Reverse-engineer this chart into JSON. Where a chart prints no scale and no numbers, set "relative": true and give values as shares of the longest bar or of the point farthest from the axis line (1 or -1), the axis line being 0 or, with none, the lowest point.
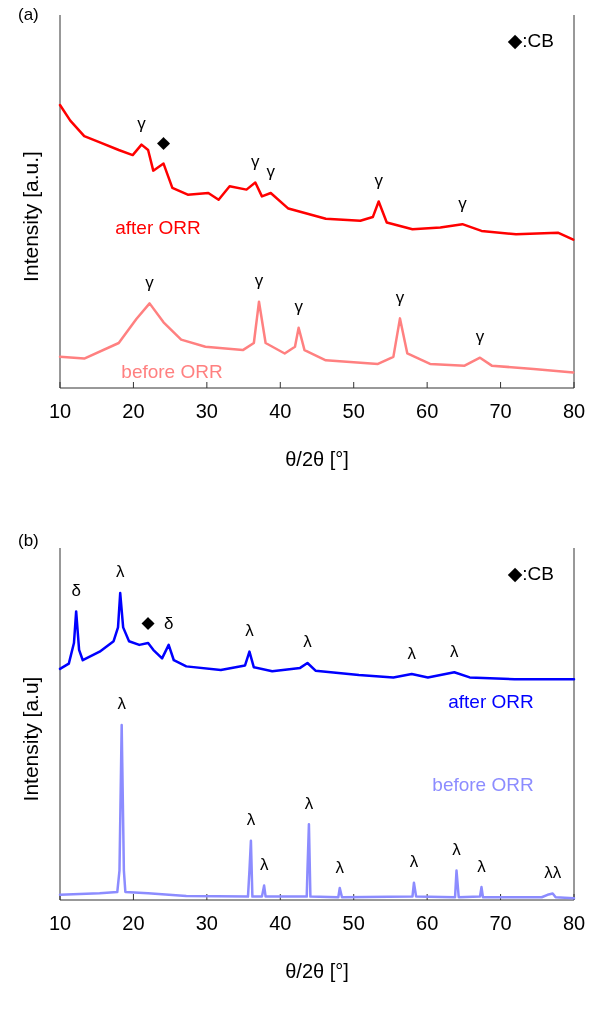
{
  "chart_data": [
    {
      "type": "line",
      "title": "(a)",
      "xlabel": "θ/2θ [°]",
      "ylabel": "Intensity [a.u.]",
      "relative": true,
      "xlim": [
        10,
        80
      ],
      "xticks": [
        10,
        20,
        30,
        40,
        50,
        60,
        70,
        80
      ],
      "tick_labels": "x",
      "series": [
        {
          "name": "after ORR",
          "color": "#ff0000",
          "x": [
            10,
            11.4,
            13.3,
            15.6,
            18,
            19.9,
            21.1,
            22,
            22.7,
            24.1,
            25.3,
            27.4,
            30.2,
            31.6,
            33.1,
            35.4,
            36.6,
            37.5,
            38.7,
            41.1,
            46.2,
            50.9,
            52.6,
            53.4,
            54.5,
            58,
            61.8,
            64.8,
            67.4,
            72.1,
            77.8,
            79.9
          ],
          "values": [
            1,
            0.945,
            0.89,
            0.866,
            0.841,
            0.823,
            0.86,
            0.841,
            0.768,
            0.793,
            0.707,
            0.683,
            0.689,
            0.665,
            0.713,
            0.701,
            0.726,
            0.677,
            0.689,
            0.634,
            0.598,
            0.591,
            0.604,
            0.659,
            0.585,
            0.561,
            0.567,
            0.579,
            0.555,
            0.543,
            0.549,
            0.524
          ]
        },
        {
          "name": "before ORR",
          "color": "#ff8080",
          "x": [
            10,
            13.3,
            18,
            20.4,
            22.2,
            24.1,
            26.5,
            29.8,
            34.9,
            36.4,
            37.1,
            38,
            40.6,
            42,
            42.5,
            43.3,
            46.2,
            53.3,
            55.4,
            56.3,
            57.3,
            60.4,
            65.1,
            67.2,
            68.8,
            74.5,
            79.9
          ],
          "values": [
            0.11,
            0.104,
            0.159,
            0.244,
            0.299,
            0.232,
            0.171,
            0.146,
            0.134,
            0.159,
            0.305,
            0.159,
            0.122,
            0.146,
            0.213,
            0.134,
            0.098,
            0.085,
            0.11,
            0.246,
            0.122,
            0.085,
            0.079,
            0.107,
            0.079,
            0.067,
            0.055
          ]
        }
      ],
      "annotations": [
        "◆:CB",
        {
          "text": "γ",
          "x": 21.1,
          "y": 0.86
        },
        {
          "text": "◆",
          "x": 24.1,
          "y": 0.793
        },
        {
          "text": "γ",
          "x": 36.6,
          "y": 0.726
        },
        {
          "text": "γ",
          "x": 38.7,
          "y": 0.689
        },
        {
          "text": "γ",
          "x": 53.4,
          "y": 0.659
        },
        {
          "text": "γ",
          "x": 64.8,
          "y": 0.579
        },
        {
          "text": "γ",
          "x": 22.2,
          "y": 0.299
        },
        {
          "text": "γ",
          "x": 37.1,
          "y": 0.305
        },
        {
          "text": "γ",
          "x": 42.5,
          "y": 0.213
        },
        {
          "text": "γ",
          "x": 56.3,
          "y": 0.246
        },
        {
          "text": "γ",
          "x": 67.2,
          "y": 0.107
        }
      ]
    },
    {
      "type": "line",
      "title": "(b)",
      "xlabel": "θ/2θ [°]",
      "ylabel": "Intensity [a.u]",
      "relative": true,
      "xlim": [
        10,
        80
      ],
      "xticks": [
        10,
        20,
        30,
        40,
        50,
        60,
        70,
        80
      ],
      "tick_labels": "x",
      "series": [
        {
          "name": "after ORR",
          "color": "#0000ff",
          "x": [
            10,
            11.2,
            11.9,
            12.2,
            12.6,
            13.1,
            15.4,
            17.3,
            17.9,
            18.2,
            18.6,
            19.4,
            20.8,
            22,
            22.7,
            23.9,
            24.8,
            25.5,
            27.2,
            31.9,
            35.2,
            35.8,
            36.4,
            38.9,
            42.7,
            43.7,
            44.8,
            50.7,
            55.4,
            57.9,
            60.1,
            63.7,
            65.8,
            71.9,
            80
          ],
          "values": [
            0.753,
            0.77,
            0.837,
            0.94,
            0.815,
            0.781,
            0.809,
            0.843,
            0.888,
            1,
            0.888,
            0.843,
            0.831,
            0.837,
            0.815,
            0.787,
            0.831,
            0.781,
            0.761,
            0.749,
            0.764,
            0.809,
            0.758,
            0.745,
            0.756,
            0.772,
            0.747,
            0.733,
            0.725,
            0.736,
            0.725,
            0.742,
            0.725,
            0.719,
            0.719
          ]
        },
        {
          "name": "before ORR",
          "color": "#8c8cff",
          "x": [
            10,
            15.4,
            17.8,
            18.1,
            18.4,
            18.7,
            18.9,
            22,
            27.2,
            35.6,
            35.8,
            36,
            36.2,
            37.5,
            37.8,
            38,
            43.6,
            43.7,
            43.9,
            44.1,
            47.9,
            48.1,
            48.4,
            58,
            58.2,
            58.5,
            63.8,
            64,
            64.3,
            67.2,
            67.4,
            67.6,
            75.6,
            76.4,
            77.1,
            77.5,
            80
          ],
          "values": [
            0.017,
            0.022,
            0.026,
            0.096,
            0.57,
            0.096,
            0.026,
            0.022,
            0.013,
            0.011,
            0.096,
            0.193,
            0.011,
            0.011,
            0.047,
            0.011,
            0.011,
            0.096,
            0.247,
            0.011,
            0.009,
            0.039,
            0.009,
            0.011,
            0.056,
            0.011,
            0.009,
            0.096,
            0.009,
            0.011,
            0.042,
            0.009,
            0.009,
            0.017,
            0.021,
            0.009,
            0.006
          ]
        }
      ],
      "annotations": [
        "◆:CB",
        {
          "text": "δ",
          "x": 12.2,
          "y": 0.94
        },
        {
          "text": "λ",
          "x": 18.2,
          "y": 1
        },
        {
          "text": "◆",
          "x": 22,
          "y": 0.837
        },
        {
          "text": "δ",
          "x": 24.8,
          "y": 0.831
        },
        {
          "text": "λ",
          "x": 35.8,
          "y": 0.809
        },
        {
          "text": "λ",
          "x": 43.7,
          "y": 0.772
        },
        {
          "text": "λ",
          "x": 57.9,
          "y": 0.736
        },
        {
          "text": "λ",
          "x": 63.7,
          "y": 0.742
        },
        {
          "text": "λ",
          "x": 18.4,
          "y": 0.57
        },
        {
          "text": "λ",
          "x": 36,
          "y": 0.193
        },
        {
          "text": "λ",
          "x": 37.8,
          "y": 0.047
        },
        {
          "text": "λ",
          "x": 43.9,
          "y": 0.247
        },
        {
          "text": "λ",
          "x": 48.1,
          "y": 0.039
        },
        {
          "text": "λ",
          "x": 58.2,
          "y": 0.056
        },
        {
          "text": "λ",
          "x": 64,
          "y": 0.096
        },
        {
          "text": "λ",
          "x": 67.4,
          "y": 0.042
        },
        {
          "text": "λλ",
          "x": 77.1,
          "y": 0.021
        }
      ]
    }
  ]
}
